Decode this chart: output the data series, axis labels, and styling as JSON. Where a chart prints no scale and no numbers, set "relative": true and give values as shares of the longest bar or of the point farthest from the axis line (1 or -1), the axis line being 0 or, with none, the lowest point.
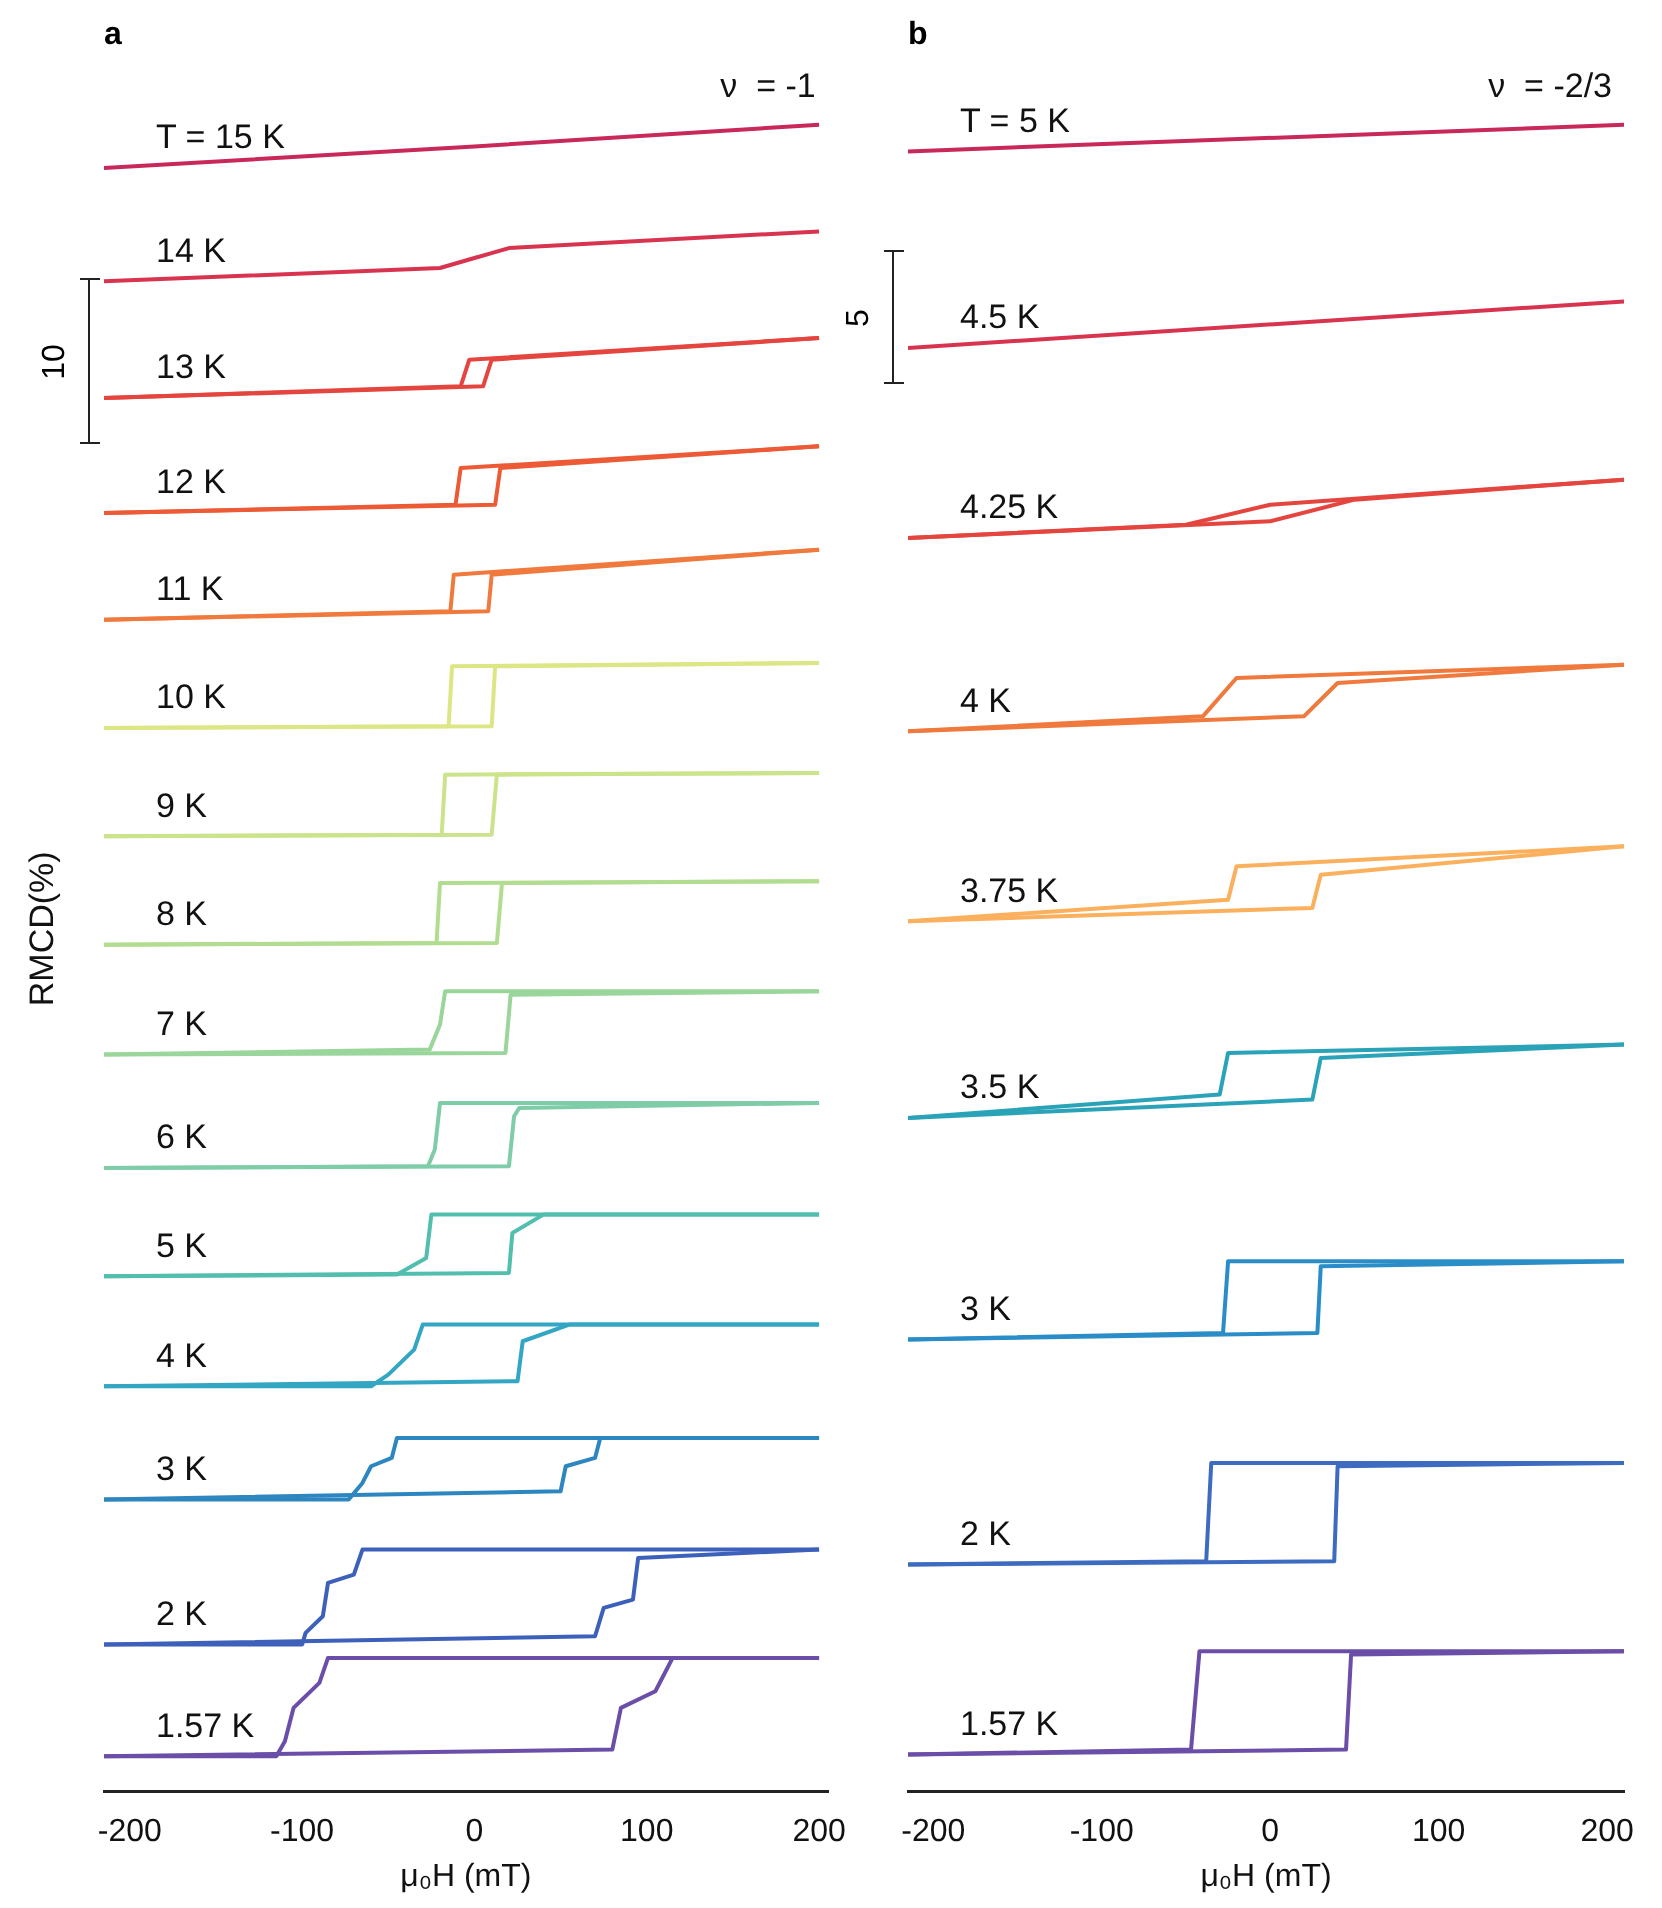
{
  "chart_data": [
    {
      "type": "line",
      "title": "a",
      "xlabel": "μ₀H (mT)",
      "ylabel": "RMCD(%)",
      "relative": true,
      "xlim": [
        -215,
        205
      ],
      "xticks": [
        -200,
        -100,
        0,
        100,
        200
      ],
      "annotations": [
        "ν  = -1",
        "10"
      ],
      "legend": false,
      "series": [
        {
          "name": "T = 15 K",
          "color": "#c8285a",
          "x": [
            -215,
            0,
            200
          ],
          "values": [
            0.974,
            0.987,
            1.0
          ]
        },
        {
          "name": "14 K",
          "color": "#d8344f",
          "x": [
            -215,
            -20,
            0,
            20,
            200
          ],
          "values": [
            0.906,
            0.914,
            0.92,
            0.926,
            0.936
          ]
        },
        {
          "name": "13 K",
          "color": "#e4463f",
          "x": [
            -215,
            5,
            10,
            200
          ],
          "values": [
            0.836,
            0.843,
            0.859,
            0.872
          ]
        },
        {
          "color": "#e4463f",
          "x": [
            -215,
            -8,
            -3,
            200
          ],
          "values": [
            0.836,
            0.843,
            0.859,
            0.872
          ]
        },
        {
          "name": "12 K",
          "color": "#ec5a36",
          "x": [
            -215,
            12,
            15,
            200
          ],
          "values": [
            0.767,
            0.772,
            0.794,
            0.807
          ]
        },
        {
          "color": "#ec5a36",
          "x": [
            -215,
            -11,
            -8,
            200
          ],
          "values": [
            0.767,
            0.772,
            0.794,
            0.807
          ]
        },
        {
          "name": "11 K",
          "color": "#f07a3e",
          "x": [
            -215,
            8,
            10,
            200
          ],
          "values": [
            0.703,
            0.708,
            0.73,
            0.745
          ]
        },
        {
          "color": "#f07a3e",
          "x": [
            -215,
            -14,
            -12,
            200
          ],
          "values": [
            0.703,
            0.708,
            0.73,
            0.745
          ]
        },
        {
          "name": "10 K",
          "color": "#dde684",
          "x": [
            -215,
            10,
            12,
            200
          ],
          "values": [
            0.638,
            0.639,
            0.675,
            0.677
          ]
        },
        {
          "color": "#dde684",
          "x": [
            -215,
            -15,
            -13,
            200
          ],
          "values": [
            0.638,
            0.639,
            0.675,
            0.677
          ]
        },
        {
          "name": "9 K",
          "color": "#cbe38a",
          "x": [
            -215,
            10,
            13,
            200
          ],
          "values": [
            0.573,
            0.574,
            0.61,
            0.611
          ]
        },
        {
          "color": "#cbe38a",
          "x": [
            -215,
            -19,
            -17,
            200
          ],
          "values": [
            0.573,
            0.574,
            0.61,
            0.611
          ]
        },
        {
          "name": "8 K",
          "color": "#b2dd90",
          "x": [
            -215,
            13,
            16,
            200
          ],
          "values": [
            0.508,
            0.509,
            0.545,
            0.546
          ]
        },
        {
          "color": "#b2dd90",
          "x": [
            -215,
            -22,
            -20,
            200
          ],
          "values": [
            0.508,
            0.509,
            0.545,
            0.546
          ]
        },
        {
          "name": "7 K",
          "color": "#9ad69b",
          "x": [
            -215,
            18,
            21,
            200
          ],
          "values": [
            0.442,
            0.443,
            0.478,
            0.48
          ]
        },
        {
          "color": "#9ad69b",
          "x": [
            -215,
            -26,
            -20,
            -17,
            200
          ],
          "values": [
            0.442,
            0.445,
            0.46,
            0.48,
            0.48
          ]
        },
        {
          "name": "6 K",
          "color": "#7fcca8",
          "x": [
            -215,
            20,
            23,
            26,
            200
          ],
          "values": [
            0.374,
            0.375,
            0.405,
            0.41,
            0.413
          ]
        },
        {
          "color": "#7fcca8",
          "x": [
            -215,
            -27,
            -23,
            -20,
            200
          ],
          "values": [
            0.374,
            0.375,
            0.385,
            0.413,
            0.413
          ]
        },
        {
          "name": "5 K",
          "color": "#52bfae",
          "x": [
            -215,
            20,
            22,
            40,
            200
          ],
          "values": [
            0.309,
            0.311,
            0.335,
            0.346,
            0.346
          ]
        },
        {
          "color": "#52bfae",
          "x": [
            -215,
            -45,
            -28,
            -25,
            200
          ],
          "values": [
            0.309,
            0.31,
            0.32,
            0.346,
            0.346
          ]
        },
        {
          "name": "4 K",
          "color": "#33a6c3",
          "x": [
            -215,
            25,
            28,
            55,
            200
          ],
          "values": [
            0.243,
            0.246,
            0.27,
            0.28,
            0.28
          ]
        },
        {
          "color": "#33a6c3",
          "x": [
            -215,
            -60,
            -50,
            -35,
            -30,
            200
          ],
          "values": [
            0.243,
            0.243,
            0.25,
            0.265,
            0.28,
            0.28
          ]
        },
        {
          "name": "3 K",
          "color": "#2d86c0",
          "x": [
            -215,
            50,
            53,
            70,
            73,
            200
          ],
          "values": [
            0.175,
            0.18,
            0.195,
            0.2,
            0.212,
            0.212
          ]
        },
        {
          "color": "#2d86c0",
          "x": [
            -215,
            -73,
            -65,
            -60,
            -48,
            -45,
            200
          ],
          "values": [
            0.175,
            0.175,
            0.185,
            0.195,
            0.2,
            0.212,
            0.212
          ]
        },
        {
          "name": "2 K",
          "color": "#3d60bb",
          "x": [
            -215,
            70,
            75,
            92,
            95,
            200
          ],
          "values": [
            0.088,
            0.093,
            0.11,
            0.115,
            0.14,
            0.145
          ]
        },
        {
          "color": "#3d60bb",
          "x": [
            -215,
            -100,
            -98,
            -88,
            -85,
            -70,
            -65,
            200
          ],
          "values": [
            0.088,
            0.088,
            0.095,
            0.105,
            0.125,
            0.13,
            0.145,
            0.145
          ]
        },
        {
          "name": "1.57 K",
          "color": "#6a4ea8",
          "x": [
            -215,
            80,
            85,
            105,
            115,
            200
          ],
          "values": [
            0.021,
            0.025,
            0.05,
            0.06,
            0.08,
            0.08
          ]
        },
        {
          "color": "#6a4ea8",
          "x": [
            -215,
            -115,
            -110,
            -105,
            -90,
            -85,
            200
          ],
          "values": [
            0.021,
            0.021,
            0.03,
            0.05,
            0.065,
            0.08,
            0.08
          ]
        }
      ]
    },
    {
      "type": "line",
      "title": "b",
      "xlabel": "μ₀H (mT)",
      "relative": true,
      "xlim": [
        -215,
        210
      ],
      "xticks": [
        -200,
        -100,
        0,
        100,
        200
      ],
      "annotations": [
        "ν  = -2/3",
        "5"
      ],
      "legend": false,
      "series": [
        {
          "name": "T = 5 K",
          "color": "#c8285a",
          "x": [
            -215,
            210
          ],
          "values": [
            0.984,
            1.0
          ]
        },
        {
          "name": "4.5 K",
          "color": "#d8344f",
          "x": [
            -215,
            210
          ],
          "values": [
            0.866,
            0.894
          ]
        },
        {
          "name": "4.25 K",
          "color": "#e4463f",
          "x": [
            -215,
            0,
            50,
            210
          ],
          "values": [
            0.752,
            0.762,
            0.775,
            0.787
          ]
        },
        {
          "color": "#e4463f",
          "x": [
            -215,
            -50,
            0,
            210
          ],
          "values": [
            0.752,
            0.76,
            0.772,
            0.787
          ]
        },
        {
          "name": "4 K",
          "color": "#f07a3e",
          "x": [
            -215,
            20,
            40,
            210
          ],
          "values": [
            0.636,
            0.645,
            0.665,
            0.676
          ]
        },
        {
          "color": "#f07a3e",
          "x": [
            -215,
            -40,
            -20,
            210
          ],
          "values": [
            0.636,
            0.645,
            0.668,
            0.676
          ]
        },
        {
          "name": "3.75 K",
          "color": "#fbb05e",
          "x": [
            -215,
            25,
            30,
            210
          ],
          "values": [
            0.522,
            0.53,
            0.55,
            0.567
          ]
        },
        {
          "color": "#fbb05e",
          "x": [
            -215,
            -25,
            -20,
            210
          ],
          "values": [
            0.522,
            0.535,
            0.555,
            0.567
          ]
        },
        {
          "name": "3.5 K",
          "color": "#2aa3b8",
          "x": [
            -215,
            25,
            30,
            210
          ],
          "values": [
            0.404,
            0.415,
            0.44,
            0.448
          ]
        },
        {
          "color": "#2aa3b8",
          "x": [
            -215,
            -30,
            -25,
            210
          ],
          "values": [
            0.404,
            0.418,
            0.443,
            0.448
          ]
        },
        {
          "name": "3 K",
          "color": "#2a8dc8",
          "x": [
            -215,
            28,
            30,
            210
          ],
          "values": [
            0.271,
            0.275,
            0.315,
            0.318
          ]
        },
        {
          "color": "#2a8dc8",
          "x": [
            -215,
            -28,
            -25,
            210
          ],
          "values": [
            0.271,
            0.275,
            0.318,
            0.318
          ]
        },
        {
          "name": "2 K",
          "color": "#3d6bc0",
          "x": [
            -215,
            38,
            40,
            210
          ],
          "values": [
            0.136,
            0.138,
            0.195,
            0.197
          ]
        },
        {
          "color": "#3d6bc0",
          "x": [
            -215,
            -38,
            -35,
            210
          ],
          "values": [
            0.136,
            0.138,
            0.197,
            0.197
          ]
        },
        {
          "name": "1.57 K",
          "color": "#6a4ea8",
          "x": [
            -215,
            45,
            48,
            210
          ],
          "values": [
            0.022,
            0.025,
            0.082,
            0.084
          ]
        },
        {
          "color": "#6a4ea8",
          "x": [
            -215,
            -47,
            -42,
            210
          ],
          "values": [
            0.022,
            0.025,
            0.084,
            0.084
          ]
        }
      ]
    }
  ]
}
